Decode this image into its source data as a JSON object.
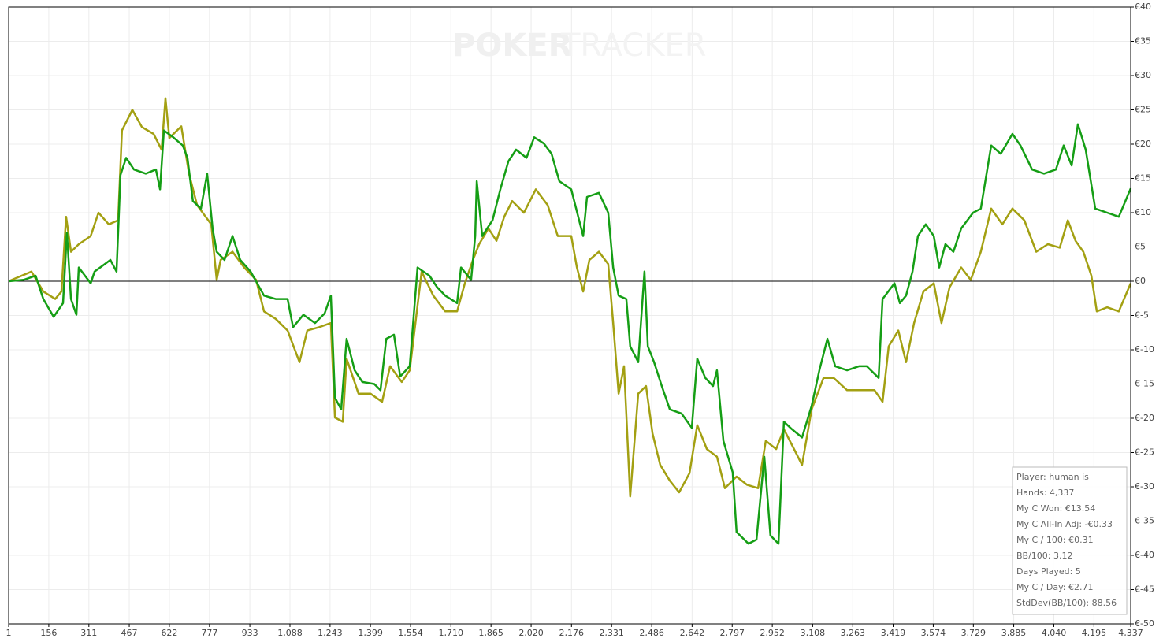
{
  "chart_data": {
    "type": "line",
    "watermark": [
      "POKER",
      "TRACKER"
    ],
    "xlim": [
      1,
      4337
    ],
    "xticks": [
      1,
      156,
      311,
      467,
      622,
      777,
      933,
      {
        "value": 1088,
        "label": "1,088"
      },
      {
        "value": 1243,
        "label": "1,243"
      },
      {
        "value": 1399,
        "label": "1,399"
      },
      {
        "value": 1554,
        "label": "1,554"
      },
      {
        "value": 1710,
        "label": "1,710"
      },
      {
        "value": 1865,
        "label": "1,865"
      },
      {
        "value": 2020,
        "label": "2,020"
      },
      {
        "value": 2176,
        "label": "2,176"
      },
      {
        "value": 2331,
        "label": "2,331"
      },
      {
        "value": 2486,
        "label": "2,486"
      },
      {
        "value": 2642,
        "label": "2,642"
      },
      {
        "value": 2797,
        "label": "2,797"
      },
      {
        "value": 2952,
        "label": "2,952"
      },
      {
        "value": 3108,
        "label": "3,108"
      },
      {
        "value": 3263,
        "label": "3,263"
      },
      {
        "value": 3419,
        "label": "3,419"
      },
      {
        "value": 3574,
        "label": "3,574"
      },
      {
        "value": 3729,
        "label": "3,729"
      },
      {
        "value": 3885,
        "label": "3,885"
      },
      {
        "value": 4040,
        "label": "4,040"
      },
      {
        "value": 4195,
        "label": "4,195"
      },
      {
        "value": 4337,
        "label": "4,337"
      }
    ],
    "ylim": [
      -50,
      40
    ],
    "yticks": [
      {
        "value": 40,
        "label": "€40"
      },
      {
        "value": 35,
        "label": "€35"
      },
      {
        "value": 30,
        "label": "€30"
      },
      {
        "value": 25,
        "label": "€25"
      },
      {
        "value": 20,
        "label": "€20"
      },
      {
        "value": 15,
        "label": "€15"
      },
      {
        "value": 10,
        "label": "€10"
      },
      {
        "value": 5,
        "label": "€5"
      },
      {
        "value": 0,
        "label": "€0"
      },
      {
        "value": -5,
        "label": "€-5"
      },
      {
        "value": -10,
        "label": "€-10"
      },
      {
        "value": -15,
        "label": "€-15"
      },
      {
        "value": -20,
        "label": "€-20"
      },
      {
        "value": -25,
        "label": "€-25"
      },
      {
        "value": -30,
        "label": "€-30"
      },
      {
        "value": -35,
        "label": "€-35"
      },
      {
        "value": -40,
        "label": "€-40"
      },
      {
        "value": -45,
        "label": "€-45"
      },
      {
        "value": -50,
        "label": "€-50"
      }
    ],
    "grid": true,
    "series": [
      {
        "color": "#a3a012",
        "x": [
          1,
          89,
          135,
          181,
          205,
          223,
          242,
          272,
          318,
          348,
          388,
          424,
          439,
          479,
          516,
          561,
          592,
          607,
          622,
          668,
          698,
          729,
          784,
          805,
          820,
          866,
          911,
          957,
          988,
          1033,
          1079,
          1125,
          1155,
          1201,
          1246,
          1262,
          1292,
          1307,
          1353,
          1399,
          1444,
          1475,
          1520,
          1551,
          1597,
          1642,
          1688,
          1734,
          1764,
          1795,
          1819,
          1855,
          1886,
          1916,
          1947,
          1992,
          2038,
          2084,
          2123,
          2175,
          2197,
          2221,
          2245,
          2282,
          2318,
          2337,
          2358,
          2379,
          2403,
          2434,
          2464,
          2489,
          2519,
          2556,
          2592,
          2632,
          2662,
          2699,
          2738,
          2769,
          2814,
          2854,
          2897,
          2927,
          2967,
          2997,
          3043,
          3067,
          3104,
          3150,
          3189,
          3241,
          3287,
          3347,
          3378,
          3402,
          3439,
          3469,
          3500,
          3536,
          3576,
          3606,
          3637,
          3682,
          3719,
          3758,
          3798,
          3841,
          3880,
          3926,
          3972,
          4017,
          4063,
          4094,
          4124,
          4154,
          4185,
          4206,
          4246,
          4291,
          4337
        ],
        "values": [
          0,
          1.4,
          -1.5,
          -2.6,
          -1.5,
          9.4,
          4.3,
          5.4,
          6.6,
          10,
          8.3,
          8.9,
          22,
          25,
          22.5,
          21.5,
          19.2,
          26.7,
          20.9,
          22.6,
          15.7,
          11.1,
          8.3,
          0.2,
          3.1,
          4.3,
          2,
          0.2,
          -4.4,
          -5.5,
          -7.2,
          -11.8,
          -7.2,
          -6.7,
          -6.1,
          -19.9,
          -20.5,
          -11.3,
          -16.4,
          -16.4,
          -17.6,
          -12.4,
          -14.7,
          -13,
          1.4,
          -2.1,
          -4.4,
          -4.4,
          -0.3,
          3.1,
          5.4,
          7.7,
          5.9,
          9.4,
          11.7,
          10,
          13.4,
          11.1,
          6.6,
          6.6,
          2,
          -1.5,
          3.1,
          4.3,
          2.5,
          -6.1,
          -16.4,
          -12.4,
          -31.4,
          -16.4,
          -15.3,
          -22.2,
          -26.8,
          -29.1,
          -30.8,
          -28,
          -21,
          -24.5,
          -25.6,
          -30.2,
          -28.5,
          -29.7,
          -30.2,
          -23.3,
          -24.5,
          -21.6,
          -25,
          -26.8,
          -18.7,
          -14.1,
          -14.1,
          -15.9,
          -15.9,
          -15.9,
          -17.6,
          -9.5,
          -7.2,
          -11.8,
          -6.1,
          -1.5,
          -0.3,
          -6.1,
          -0.9,
          2,
          0.2,
          4.3,
          10.6,
          8.3,
          10.6,
          8.9,
          4.3,
          5.4,
          4.9,
          8.9,
          5.9,
          4.3,
          0.8,
          -4.4,
          -3.8,
          -4.4,
          -0.3
        ]
      },
      {
        "color": "#159e15",
        "x": [
          1,
          59,
          105,
          135,
          175,
          211,
          226,
          242,
          263,
          272,
          318,
          333,
          394,
          418,
          433,
          455,
          485,
          531,
          570,
          586,
          601,
          637,
          674,
          692,
          713,
          744,
          768,
          789,
          805,
          835,
          866,
          896,
          936,
          988,
          1033,
          1079,
          1100,
          1140,
          1185,
          1222,
          1246,
          1262,
          1286,
          1307,
          1338,
          1368,
          1414,
          1438,
          1460,
          1490,
          1514,
          1551,
          1581,
          1627,
          1657,
          1688,
          1734,
          1749,
          1788,
          1804,
          1810,
          1831,
          1871,
          1901,
          1932,
          1962,
          2002,
          2032,
          2069,
          2099,
          2129,
          2175,
          2221,
          2236,
          2282,
          2318,
          2337,
          2358,
          2388,
          2403,
          2434,
          2458,
          2471,
          2495,
          2525,
          2556,
          2601,
          2641,
          2662,
          2693,
          2723,
          2738,
          2763,
          2799,
          2814,
          2860,
          2891,
          2921,
          2945,
          2976,
          2997,
          3028,
          3067,
          3104,
          3134,
          3165,
          3195,
          3241,
          3287,
          3317,
          3363,
          3378,
          3424,
          3445,
          3469,
          3494,
          3515,
          3545,
          3576,
          3597,
          3621,
          3652,
          3682,
          3728,
          3758,
          3798,
          3835,
          3880,
          3911,
          3956,
          4002,
          4048,
          4078,
          4109,
          4133,
          4163,
          4200,
          4246,
          4291,
          4337
        ],
        "values": [
          0,
          0.2,
          0.8,
          -2.6,
          -5.2,
          -3.2,
          7.1,
          -2.6,
          -4.9,
          2,
          -0.3,
          1.4,
          3.1,
          1.4,
          15.5,
          18,
          16.3,
          15.7,
          16.3,
          13.4,
          22,
          21,
          19.8,
          18,
          11.7,
          10.6,
          15.7,
          7.7,
          4.3,
          3.1,
          6.6,
          3.1,
          1.4,
          -2.1,
          -2.6,
          -2.6,
          -6.7,
          -4.9,
          -6.1,
          -4.7,
          -2.1,
          -17,
          -18.7,
          -8.4,
          -13,
          -14.7,
          -15,
          -15.9,
          -8.4,
          -7.8,
          -13.9,
          -12.4,
          2,
          0.8,
          -0.9,
          -2.1,
          -3.2,
          2,
          0.2,
          6.6,
          14.6,
          6.6,
          8.9,
          13.4,
          17.5,
          19.2,
          18,
          21,
          20.1,
          18.6,
          14.6,
          13.4,
          6.6,
          12.3,
          12.9,
          10,
          2,
          -2.1,
          -2.6,
          -9.5,
          -11.8,
          1.4,
          -9.5,
          -11.8,
          -15.3,
          -18.7,
          -19.3,
          -21.4,
          -11.3,
          -14.1,
          -15.3,
          -13,
          -23.3,
          -27.9,
          -36.6,
          -38.3,
          -37.7,
          -25.6,
          -37.1,
          -38.3,
          -20.5,
          -21.6,
          -22.8,
          -18.2,
          -13,
          -8.4,
          -12.4,
          -13,
          -12.4,
          -12.4,
          -14.1,
          -2.6,
          -0.3,
          -3.2,
          -2.1,
          1.4,
          6.6,
          8.3,
          6.6,
          2,
          5.4,
          4.3,
          7.7,
          10,
          10.6,
          19.8,
          18.6,
          21.5,
          19.8,
          16.3,
          15.7,
          16.3,
          19.8,
          16.9,
          22.9,
          19.2,
          10.6,
          10,
          9.4,
          13.54
        ]
      }
    ],
    "info_box": [
      "Player: human is",
      "Hands: 4,337",
      "My C Won: €13.54",
      "My C All-In Adj: -€0.33",
      "My C / 100: €0.31",
      "BB/100: 3.12",
      "Days Played: 5",
      "My C / Day: €2.71",
      "StdDev(BB/100): 88.56"
    ]
  }
}
